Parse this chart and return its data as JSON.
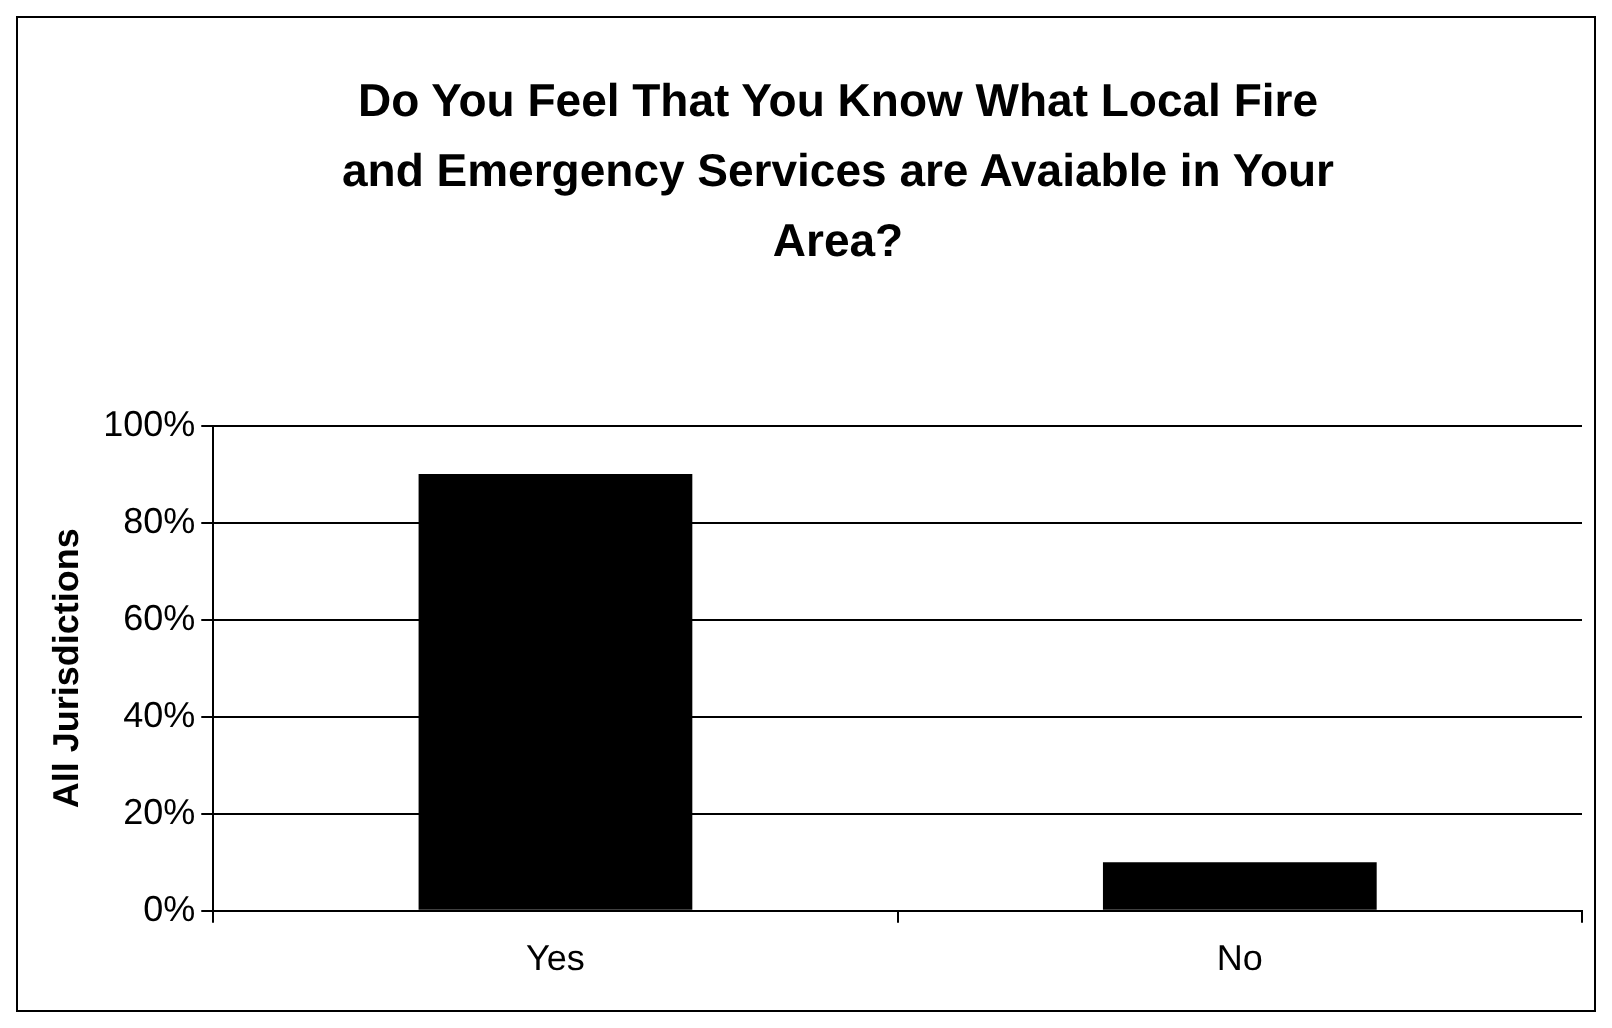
{
  "chart_data": {
    "type": "bar",
    "title": "Do You Feel That You Know What Local Fire and Emergency Services are Avaiable in Your Area?",
    "ylabel": "All Jurisdictions",
    "categories": [
      "Yes",
      "No"
    ],
    "values": [
      90,
      10
    ],
    "color": "#000000",
    "ylim": [
      0,
      100
    ],
    "yticks": [
      {
        "value": 0,
        "label": "0%"
      },
      {
        "value": 20,
        "label": "20%"
      },
      {
        "value": 40,
        "label": "40%"
      },
      {
        "value": 60,
        "label": "60%"
      },
      {
        "value": 80,
        "label": "80%"
      },
      {
        "value": 100,
        "label": "100%"
      }
    ],
    "grid": "y",
    "legend": false
  }
}
